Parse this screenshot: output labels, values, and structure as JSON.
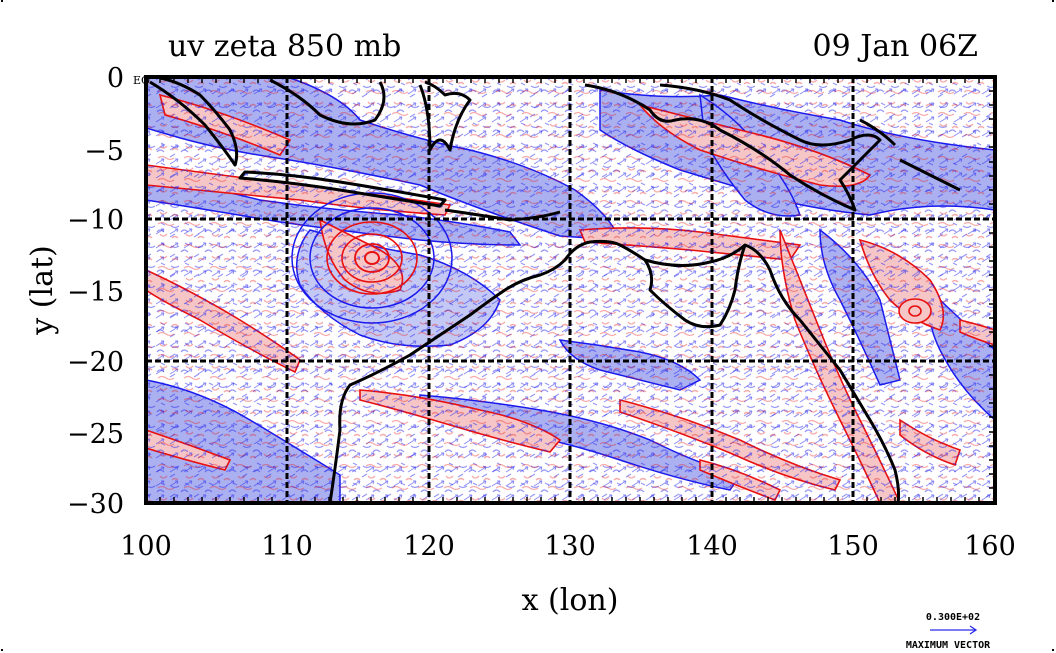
{
  "header": {
    "left_title": "uv zeta 850 mb",
    "right_title": "09 Jan 06Z"
  },
  "axes": {
    "xlabel": "x (lon)",
    "ylabel": "y (lat)",
    "x_ticks": [
      "100",
      "110",
      "120",
      "130",
      "140",
      "150",
      "160"
    ],
    "y_ticks": [
      "0",
      "−5",
      "−10",
      "−15",
      "−20",
      "−25",
      "−30"
    ],
    "corner_label": "EQ",
    "xlim": [
      100,
      160
    ],
    "ylim": [
      -30,
      0
    ],
    "grid": true
  },
  "legend": {
    "vector_value": "0.300E+02",
    "vector_label": "MAXIMUM VECTOR"
  },
  "colors": {
    "positive_vorticity": "#e81010",
    "negative_vorticity": "#1a1aee",
    "positive_fill": "#f6c6c6",
    "negative_fill": "#aab0f0",
    "coastline": "#000000"
  },
  "chart_data": {
    "type": "heatmap",
    "title": "uv zeta 850 mb",
    "subtitle": "09 Jan 06Z",
    "xlabel": "x (lon)",
    "ylabel": "y (lat)",
    "xlim": [
      100,
      160
    ],
    "ylim": [
      -30,
      0
    ],
    "x_ticks": [
      100,
      110,
      120,
      130,
      140,
      150,
      160
    ],
    "y_ticks": [
      0,
      -5,
      -10,
      -15,
      -20,
      -25,
      -30
    ],
    "grid_lines_x": [
      110,
      120,
      130,
      140,
      150
    ],
    "grid_lines_y": [
      -10,
      -20
    ],
    "features": {
      "cyclone_center": [
        116,
        -12.5
      ],
      "secondary_vortex": [
        154.5,
        -16.5
      ]
    }
  }
}
